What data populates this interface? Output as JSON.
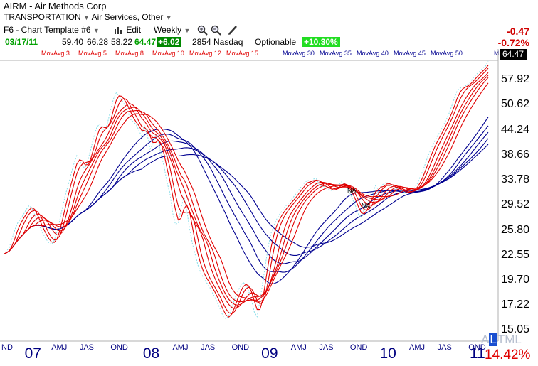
{
  "header": {
    "symbol": "AIRM",
    "separator": " - ",
    "company": "Air Methods Corp",
    "sector": "TRANSPORTATION",
    "industry": "Air Services, Other",
    "template": "F6 - Chart Template #6",
    "edit_label": "Edit",
    "period": "Weekly",
    "date": "03/17/11",
    "open": "59.40",
    "high": "66.28",
    "low": "58.22",
    "close": "64.47",
    "change": "+6.02",
    "volume": "2854",
    "exchange": "Nasdaq",
    "optionable": "Optionable",
    "pct_change": "+10.30%",
    "net_change": "-0.47",
    "net_pct": "-0.72%"
  },
  "icons": [
    "zoom-in-icon",
    "zoom-out-icon",
    "pencil-icon",
    "chart-icon"
  ],
  "footer": {
    "altml": [
      "A",
      "L",
      "T",
      "M",
      "L"
    ],
    "selected_index": 1,
    "percent": "14.42%"
  },
  "colors": {
    "short_ma": "#e00000",
    "long_ma": "#000090",
    "price": "#88dde8",
    "accent_green": "#22dd22"
  },
  "chart_data": {
    "type": "line",
    "price_box": "64.47",
    "y_ticks": [
      "57.92",
      "50.62",
      "44.24",
      "38.66",
      "33.78",
      "29.52",
      "25.80",
      "22.55",
      "19.70",
      "17.22",
      "15.05"
    ],
    "y_scale": "log",
    "legend": [
      {
        "name": "MovAvg 3",
        "color": "#e00000"
      },
      {
        "name": "MovAvg 5",
        "color": "#e00000"
      },
      {
        "name": "MovAvg 8",
        "color": "#e00000"
      },
      {
        "name": "MovAvg 10",
        "color": "#e00000"
      },
      {
        "name": "MovAvg 12",
        "color": "#e00000"
      },
      {
        "name": "MovAvg 15",
        "color": "#e00000"
      },
      {
        "name": "MovAvg 30",
        "color": "#000090"
      },
      {
        "name": "MovAvg 35",
        "color": "#000090"
      },
      {
        "name": "MovAvg 40",
        "color": "#000090"
      },
      {
        "name": "MovAvg 45",
        "color": "#000090"
      },
      {
        "name": "MovAvg 50",
        "color": "#000090"
      }
    ],
    "legend_last": "M",
    "x_months": [
      {
        "label": "ND",
        "i": 0
      },
      {
        "label": "AMJ",
        "i": 19
      },
      {
        "label": "JAS",
        "i": 29
      },
      {
        "label": "OND",
        "i": 40
      },
      {
        "label": "AMJ",
        "i": 62
      },
      {
        "label": "JAS",
        "i": 72
      },
      {
        "label": "OND",
        "i": 83
      },
      {
        "label": "AMJ",
        "i": 104
      },
      {
        "label": "JAS",
        "i": 114
      },
      {
        "label": "OND",
        "i": 125
      },
      {
        "label": "AMJ",
        "i": 146
      },
      {
        "label": "JAS",
        "i": 156
      },
      {
        "label": "OND",
        "i": 167
      }
    ],
    "x_years": [
      {
        "label": "07",
        "i": 10
      },
      {
        "label": "08",
        "i": 52
      },
      {
        "label": "09",
        "i": 94
      },
      {
        "label": "10",
        "i": 136
      },
      {
        "label": "11",
        "i": 178
      }
    ],
    "annotations": [
      {
        "text": "NA",
        "i": 122,
        "y": 31.8
      },
      {
        "text": "NA",
        "i": 127,
        "y": 29.3
      }
    ],
    "price_series": [
      22.8,
      23.2,
      23.6,
      24.8,
      26.0,
      27.0,
      27.6,
      28.2,
      29.0,
      29.6,
      29.3,
      28.3,
      27.2,
      26.3,
      25.5,
      24.8,
      24.3,
      24.0,
      24.6,
      25.8,
      27.5,
      29.5,
      31.5,
      33.2,
      35.2,
      37.2,
      38.8,
      37.8,
      36.5,
      36.4,
      38.0,
      40.2,
      42.8,
      45.0,
      46.0,
      45.0,
      44.2,
      46.5,
      49.6,
      52.6,
      54.4,
      53.5,
      52.2,
      51.0,
      49.5,
      47.2,
      46.5,
      45.9,
      44.5,
      43.0,
      45.7,
      43.4,
      40.2,
      41.3,
      43.4,
      41.7,
      38.8,
      36.5,
      33.6,
      31.8,
      28.5,
      26.8,
      27.0,
      29.2,
      31.1,
      29.0,
      26.2,
      24.2,
      22.8,
      21.5,
      20.6,
      20.1,
      19.6,
      19.2,
      18.6,
      18.1,
      17.5,
      16.9,
      16.3,
      16.1,
      16.4,
      17.1,
      17.9,
      18.6,
      19.2,
      19.6,
      19.4,
      18.7,
      17.8,
      16.7,
      16.3,
      17.8,
      19.6,
      21.7,
      23.9,
      25.6,
      26.7,
      27.6,
      28.3,
      28.9,
      29.5,
      30.0,
      30.5,
      31.1,
      31.7,
      32.4,
      33.0,
      33.6,
      34.0,
      33.5,
      34.2,
      34.3,
      33.2,
      32.9,
      32.8,
      32.5,
      32.2,
      32.1,
      32.5,
      33.2,
      33.7,
      33.1,
      32.6,
      31.6,
      30.5,
      29.5,
      28.2,
      27.8,
      29.1,
      29.9,
      31.0,
      31.6,
      33.0,
      32.3,
      32.9,
      33.4,
      33.6,
      33.0,
      32.8,
      32.6,
      32.4,
      32.1,
      31.9,
      31.7,
      31.9,
      32.2,
      32.7,
      33.5,
      34.8,
      36.0,
      37.7,
      39.2,
      40.6,
      41.9,
      43.1,
      44.2,
      45.6,
      46.9,
      48.5,
      50.5,
      52.8,
      55.0,
      55.8,
      56.0,
      56.5,
      57.1,
      58.1,
      59.3,
      60.2,
      61.0,
      62.0,
      62.7,
      64.5
    ]
  }
}
